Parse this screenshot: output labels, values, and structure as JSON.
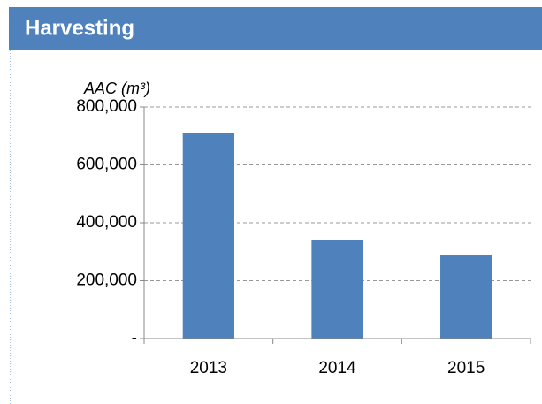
{
  "header": {
    "title": "Harvesting"
  },
  "chart_data": {
    "type": "bar",
    "y_label": "AAC (m³)",
    "categories": [
      "2013",
      "2014",
      "2015"
    ],
    "values": [
      710000,
      340000,
      287000
    ],
    "color": "#4f81bd",
    "ylim": [
      0,
      800000
    ],
    "yticks": [
      {
        "value": 0,
        "label": "-"
      },
      {
        "value": 200000,
        "label": "200,000"
      },
      {
        "value": 400000,
        "label": "400,000"
      },
      {
        "value": 600000,
        "label": "600,000"
      },
      {
        "value": 800000,
        "label": "800,000"
      }
    ],
    "grid": true
  }
}
